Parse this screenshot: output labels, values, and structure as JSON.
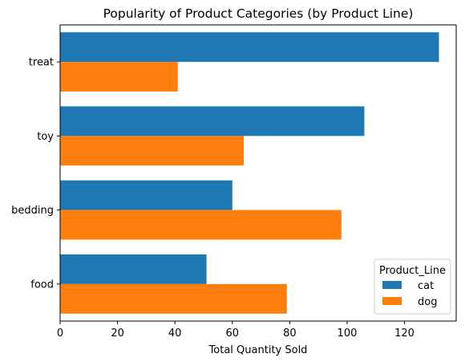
{
  "chart_data": {
    "type": "bar",
    "orientation": "horizontal",
    "title": "Popularity of Product Categories (by Product Line)",
    "xlabel": "Total Quantity Sold",
    "ylabel": "",
    "categories": [
      "treat",
      "toy",
      "bedding",
      "food"
    ],
    "series": [
      {
        "name": "cat",
        "color": "#1f77b4",
        "values": [
          132,
          106,
          60,
          51
        ]
      },
      {
        "name": "dog",
        "color": "#ff7f0e",
        "values": [
          41,
          64,
          98,
          79
        ]
      }
    ],
    "xlim": [
      0,
      138
    ],
    "xticks": [
      0,
      20,
      40,
      60,
      80,
      100,
      120
    ],
    "grid": false,
    "legend": {
      "title": "Product_Line",
      "placement": "lower-right"
    }
  }
}
